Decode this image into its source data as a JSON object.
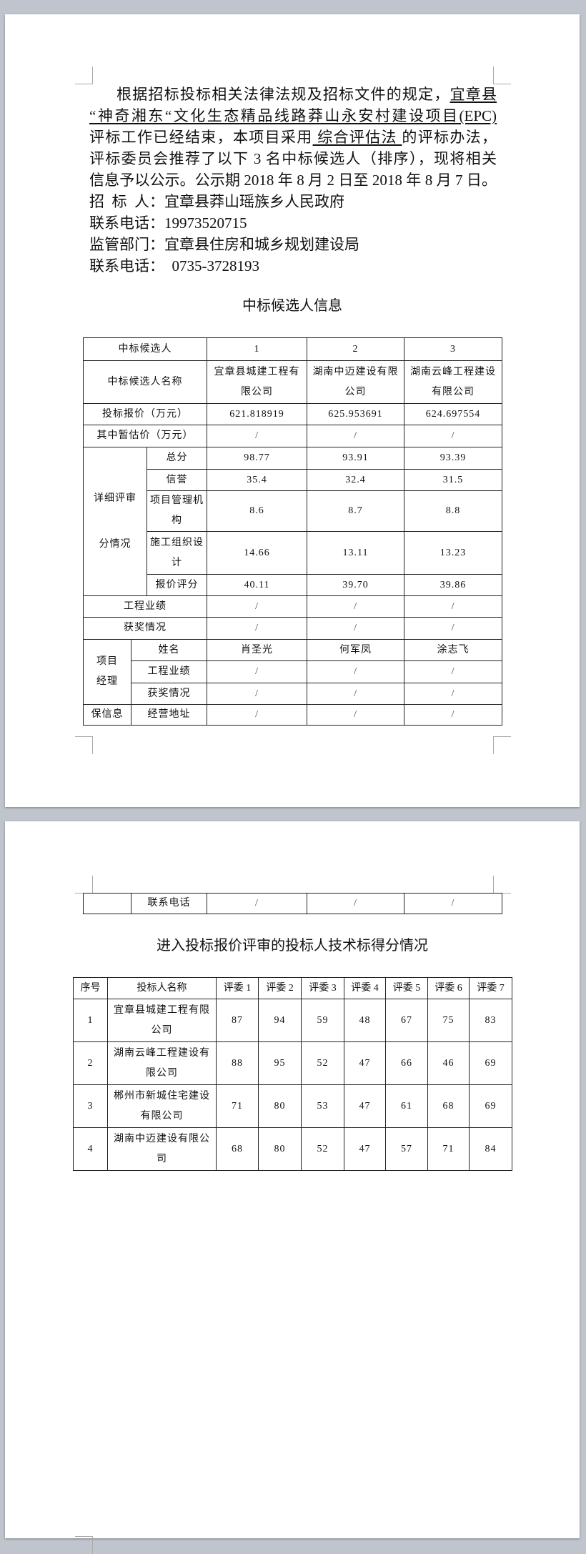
{
  "notice": {
    "line1": {
      "text": "根据招标投标相关法律法规及招标文件的规定，",
      "underlined": "宜章县"
    },
    "line2": {
      "underlined": "“神奇湘东“文化生态精品线路莽山永安村建设项目(EPC)"
    },
    "line3": {
      "pre": "评标工作已经结束，本项目采用",
      "underlined": " 综合评估法 ",
      "post": "的评标办法，"
    },
    "line4": "评标委员会推荐了以下 3 名中标候选人（排序），现将相关",
    "line5": "信息予以公示。公示期 2018 年 8 月 2 日至 2018 年 8 月 7 日。",
    "tenderer": "招  标  人：宜章县莽山瑶族乡人民政府",
    "phone1": "联系电话：19973520715",
    "supervisor": "监管部门：宜章县住房和城乡规划建设局",
    "phone2": "联系电话：  0735-3728193"
  },
  "table1": {
    "title": "中标候选人信息",
    "rank_label": "中标候选人",
    "ranks": [
      "1",
      "2",
      "3"
    ],
    "name_label": "中标候选人名称",
    "names": [
      "宜章县城建工程有限公司",
      "湖南中迈建设有限公司",
      "湖南云峰工程建设有限公司"
    ],
    "bid_label": "投标报价（万元）",
    "bids": [
      "621.818919",
      "625.953691",
      "624.697554"
    ],
    "provisional_label": "其中暂估价（万元）",
    "provisional": [
      "/",
      "/",
      "/"
    ],
    "detail_label": "详细评审分情况",
    "detail_rows": [
      {
        "label": "总分",
        "values": [
          "98.77",
          "93.91",
          "93.39"
        ]
      },
      {
        "label": "信誉",
        "values": [
          "35.4",
          "32.4",
          "31.5"
        ]
      },
      {
        "label": "项目管理机构",
        "values": [
          "8.6",
          "8.7",
          "8.8"
        ]
      },
      {
        "label": "施工组织设计",
        "values": [
          "14.66",
          "13.11",
          "13.23"
        ]
      },
      {
        "label": "报价评分",
        "values": [
          "40.11",
          "39.70",
          "39.86"
        ]
      }
    ],
    "performance_label": "工程业绩",
    "performance": [
      "/",
      "/",
      "/"
    ],
    "awards_label": "获奖情况",
    "awards": [
      "/",
      "/",
      "/"
    ],
    "manager_label": "项目经理",
    "manager_rows": [
      {
        "label": "姓名",
        "values": [
          "肖圣光",
          "何军凤",
          "涂志飞"
        ]
      },
      {
        "label": "工程业绩",
        "values": [
          "/",
          "/",
          "/"
        ]
      },
      {
        "label": "获奖情况",
        "values": [
          "/",
          "/",
          "/"
        ]
      }
    ],
    "info_label": "保信息",
    "address_label": "经营地址",
    "address": [
      "/",
      "/",
      "/"
    ],
    "contact_label": "联系电话",
    "contact": [
      "/",
      "/",
      "/"
    ]
  },
  "table2": {
    "title": "进入投标报价评审的投标人技术标得分情况",
    "headers": [
      "序号",
      "投标人名称",
      "评委 1",
      "评委 2",
      "评委 3",
      "评委 4",
      "评委 5",
      "评委 6",
      "评委 7"
    ],
    "rows": [
      {
        "no": "1",
        "name": "宜章县城建工程有限公司",
        "scores": [
          "87",
          "94",
          "59",
          "48",
          "67",
          "75",
          "83"
        ]
      },
      {
        "no": "2",
        "name": "湖南云峰工程建设有限公司",
        "scores": [
          "88",
          "95",
          "52",
          "47",
          "66",
          "46",
          "69"
        ]
      },
      {
        "no": "3",
        "name": "郴州市新城住宅建设有限公司",
        "scores": [
          "71",
          "80",
          "53",
          "47",
          "61",
          "68",
          "69"
        ]
      },
      {
        "no": "4",
        "name": "湖南中迈建设有限公司",
        "scores": [
          "68",
          "80",
          "52",
          "47",
          "57",
          "71",
          "84"
        ]
      }
    ]
  }
}
